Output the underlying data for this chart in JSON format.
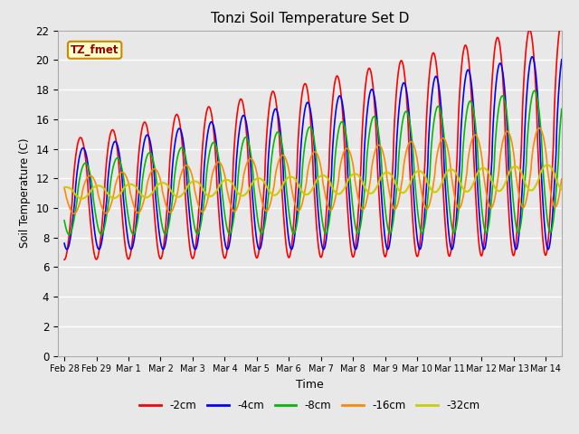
{
  "title": "Tonzi Soil Temperature Set D",
  "xlabel": "Time",
  "ylabel": "Soil Temperature (C)",
  "xlim_days": [
    -0.2,
    15.5
  ],
  "ylim": [
    0,
    22
  ],
  "yticks": [
    0,
    2,
    4,
    6,
    8,
    10,
    12,
    14,
    16,
    18,
    20,
    22
  ],
  "xtick_labels": [
    "Feb 28",
    "Feb 29",
    "Mar 1",
    "Mar 2",
    "Mar 3",
    "Mar 4",
    "Mar 5",
    "Mar 6",
    "Mar 7",
    "Mar 8",
    "Mar 9",
    "Mar 10",
    "Mar 11",
    "Mar 12",
    "Mar 13",
    "Mar 14"
  ],
  "xtick_positions": [
    0,
    1,
    2,
    3,
    4,
    5,
    6,
    7,
    8,
    9,
    10,
    11,
    12,
    13,
    14,
    15
  ],
  "legend_labels": [
    "-2cm",
    "-4cm",
    "-8cm",
    "-16cm",
    "-32cm"
  ],
  "legend_colors": [
    "#ff0000",
    "#0000ff",
    "#00bb00",
    "#ff8800",
    "#cccc00"
  ],
  "annotation_text": "TZ_fmet",
  "annotation_bg": "#ffffcc",
  "annotation_border": "#cc8800",
  "bg_color": "#e8e8e8",
  "grid_color": "#ffffff",
  "series_colors": [
    "#ff0000",
    "#0000ff",
    "#00bb00",
    "#ff8800",
    "#cccc00"
  ],
  "series_lw": [
    1.2,
    1.2,
    1.2,
    1.2,
    1.5
  ],
  "figsize": [
    6.4,
    4.8
  ],
  "dpi": 100
}
